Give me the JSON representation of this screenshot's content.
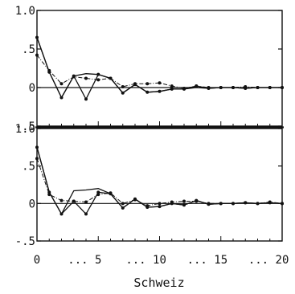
{
  "chart_data": [
    {
      "type": "line",
      "x": [
        0,
        1,
        2,
        3,
        4,
        5,
        6,
        7,
        8,
        9,
        10,
        11,
        12,
        13,
        14,
        15,
        16,
        17,
        18,
        19,
        20
      ],
      "series": [
        {
          "values": [
            0.65,
            0.2,
            -0.13,
            0.15,
            0.18,
            0.17,
            0.12,
            -0.07,
            0.04,
            -0.06,
            -0.05,
            -0.02,
            -0.02,
            0.0,
            -0.01,
            0.0,
            0.0,
            -0.01,
            0.0,
            0.0,
            0.0
          ],
          "style": "solid",
          "markers": false
        },
        {
          "values": [
            0.42,
            0.22,
            0.05,
            0.14,
            0.12,
            0.1,
            0.12,
            0.01,
            0.05,
            0.05,
            0.06,
            0.02,
            -0.01,
            0.02,
            0.0,
            0.0,
            0.0,
            0.01,
            0.0,
            0.0,
            0.0
          ],
          "style": "dash-dot",
          "markers": true
        },
        {
          "values": [
            0.65,
            0.2,
            -0.13,
            0.15,
            -0.15,
            0.17,
            0.12,
            -0.07,
            0.04,
            -0.06,
            -0.05,
            -0.02,
            -0.02,
            0.02,
            -0.01,
            0.0,
            0.0,
            -0.01,
            0.0,
            0.0,
            0.0
          ],
          "style": "solid",
          "markers": true
        }
      ],
      "ylim": [
        -0.5,
        1.0
      ],
      "xlim": [
        0,
        20
      ],
      "y_ticks": [
        "-.5",
        "0",
        ".5",
        "1.0"
      ],
      "grid": false,
      "zero_line": true
    },
    {
      "type": "line",
      "x": [
        0,
        1,
        2,
        3,
        4,
        5,
        6,
        7,
        8,
        9,
        10,
        11,
        12,
        13,
        14,
        15,
        16,
        17,
        18,
        19,
        20
      ],
      "series": [
        {
          "values": [
            0.75,
            0.15,
            -0.14,
            0.17,
            0.18,
            0.2,
            0.13,
            -0.06,
            0.06,
            -0.05,
            -0.04,
            0.0,
            -0.02,
            0.04,
            -0.01,
            0.0,
            0.0,
            0.01,
            0.0,
            0.01,
            0.0
          ],
          "style": "solid",
          "markers": false
        },
        {
          "values": [
            0.6,
            0.12,
            0.04,
            0.03,
            0.02,
            0.12,
            0.14,
            0.0,
            0.05,
            -0.03,
            0.0,
            0.02,
            0.03,
            0.03,
            0.0,
            0.0,
            0.0,
            0.01,
            0.0,
            0.02,
            0.0
          ],
          "style": "dash-dot",
          "markers": true
        },
        {
          "values": [
            0.75,
            0.15,
            -0.14,
            0.03,
            -0.14,
            0.15,
            0.13,
            -0.06,
            0.06,
            -0.05,
            -0.04,
            0.0,
            -0.02,
            0.04,
            -0.01,
            0.0,
            0.0,
            0.01,
            0.0,
            0.01,
            0.0
          ],
          "style": "solid",
          "markers": true
        }
      ],
      "ylim": [
        -0.5,
        1.0
      ],
      "xlim": [
        0,
        20
      ],
      "y_ticks": [
        "-.5",
        "0",
        ".5",
        "1.0"
      ],
      "x_ticks": [
        "0",
        "... 5",
        "... 10",
        "... 15",
        "... 20"
      ],
      "grid": false,
      "zero_line": true
    }
  ],
  "caption": "Schweiz"
}
